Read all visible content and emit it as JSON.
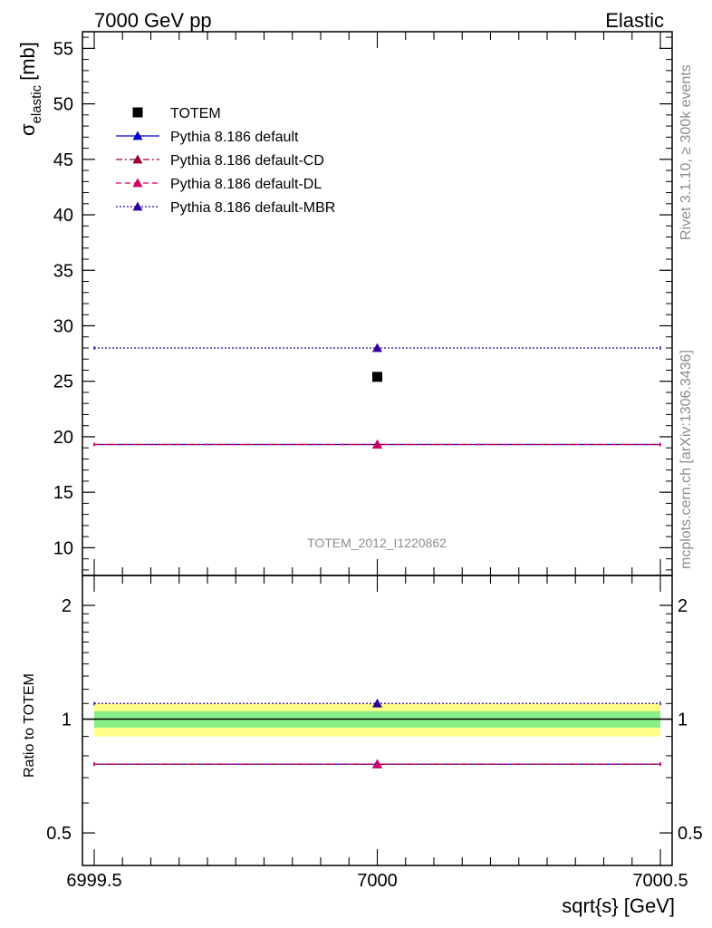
{
  "header": {
    "left": "7000 GeV pp",
    "right": "Elastic"
  },
  "side_text": {
    "rivet": "Rivet 3.1.10, ≥ 300k events",
    "mcplots": "mcplots.cern.ch [arXiv:1306.3436]"
  },
  "watermark": "TOTEM_2012_I1220862",
  "chart_data": [
    {
      "type": "scatter",
      "panel": "main",
      "ylabel_main": "σ",
      "ylabel_sub": "elastic",
      "ylabel_unit": "[mb]",
      "xlim": [
        6999.5,
        7000.5
      ],
      "ylim": [
        7.5,
        56.5
      ],
      "yticks": [
        10,
        15,
        20,
        25,
        30,
        35,
        40,
        45,
        50,
        55
      ],
      "data": {
        "name": "TOTEM",
        "x": 7000,
        "y": 25.4,
        "color": "#000000"
      },
      "series": [
        {
          "name": "Pythia 8.186 default",
          "x": 7000,
          "y": 19.3,
          "color": "#0000cc",
          "dash": "solid"
        },
        {
          "name": "Pythia 8.186 default-CD",
          "x": 7000,
          "y": 19.3,
          "color": "#990033",
          "dash": "dashdot"
        },
        {
          "name": "Pythia 8.186 default-DL",
          "x": 7000,
          "y": 19.3,
          "color": "#cc0066",
          "dash": "dashed"
        },
        {
          "name": "Pythia 8.186 default-MBR",
          "x": 7000,
          "y": 28.0,
          "color": "#330099",
          "dash": "dotted"
        }
      ],
      "legend": "upper-left"
    },
    {
      "type": "scatter",
      "panel": "ratio",
      "ylabel": "Ratio to TOTEM",
      "xlabel": "sqrt{s} [GeV]",
      "xlim": [
        6999.5,
        7000.5
      ],
      "ylim": [
        0.41,
        2.4
      ],
      "log_y": true,
      "yticks": [
        0.5,
        1,
        2
      ],
      "ytick_labels": [
        "0.5",
        "1",
        "2"
      ],
      "xticks": [
        6999.5,
        7000,
        7000.5
      ],
      "xtick_labels": [
        "6999.5",
        "7000",
        "7000.5"
      ],
      "band_green": [
        0.95,
        1.05
      ],
      "band_yellow": [
        0.9,
        1.1
      ],
      "series": [
        {
          "name": "Pythia 8.186 default",
          "y": 0.76
        },
        {
          "name": "Pythia 8.186 default-CD",
          "y": 0.76
        },
        {
          "name": "Pythia 8.186 default-DL",
          "y": 0.76
        },
        {
          "name": "Pythia 8.186 default-MBR",
          "y": 1.1
        }
      ]
    }
  ]
}
